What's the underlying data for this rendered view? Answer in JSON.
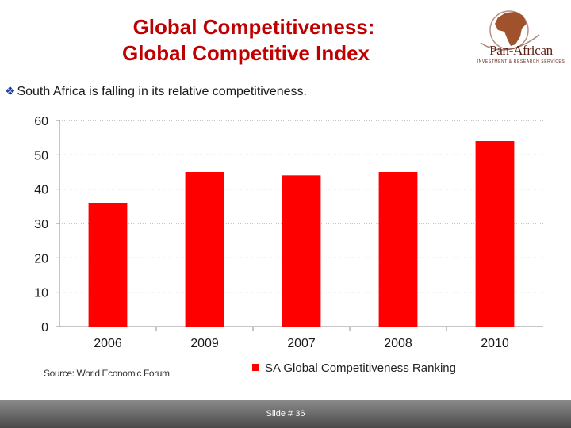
{
  "title": {
    "line1": "Global Competitiveness:",
    "line2": "Global Competitive Index"
  },
  "logo": {
    "name": "Pan-African",
    "tagline": "INVESTMENT & RESEARCH SERVICES"
  },
  "bullet": {
    "marker": "❖",
    "text": "South Africa is falling in its relative competitiveness."
  },
  "chart_data": {
    "type": "bar",
    "title": "",
    "categories": [
      "2006",
      "2009",
      "2007",
      "2008",
      "2010"
    ],
    "series": [
      {
        "name": "SA Global Competitiveness Ranking",
        "values": [
          36,
          45,
          44,
          45,
          54
        ],
        "color": "#ff0000"
      }
    ],
    "ylim": [
      0,
      60
    ],
    "yticks": [
      0,
      10,
      20,
      30,
      40,
      50,
      60
    ],
    "grid": true,
    "xlabel": "",
    "ylabel": "",
    "legend": "bottom"
  },
  "source": "Source: World Economic Forum",
  "footer": {
    "slide_label": "Slide # 36"
  },
  "colors": {
    "title": "#c00000",
    "bar": "#ff0000",
    "footer": "#6a6a6a"
  }
}
